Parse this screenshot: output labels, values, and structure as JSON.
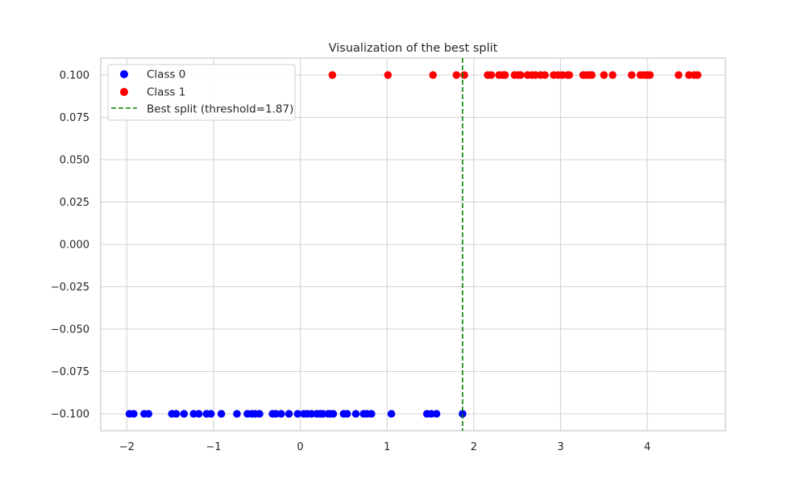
{
  "chart_data": {
    "type": "scatter",
    "title": "Visualization of the best split",
    "xlabel": "",
    "ylabel": "",
    "xlim": [
      -2.3,
      4.9
    ],
    "ylim": [
      -0.11,
      0.11
    ],
    "x_ticks": [
      -2,
      -1,
      0,
      1,
      2,
      3,
      4
    ],
    "x_tick_labels": [
      "−2",
      "−1",
      "0",
      "1",
      "2",
      "3",
      "4"
    ],
    "y_ticks": [
      0.1,
      0.075,
      0.05,
      0.025,
      0.0,
      -0.025,
      -0.05,
      -0.075,
      -0.1
    ],
    "y_tick_labels": [
      "0.100",
      "0.075",
      "0.050",
      "0.025",
      "0.000",
      "−0.025",
      "−0.050",
      "−0.075",
      "−0.100"
    ],
    "grid": true,
    "legend_position": "top-left",
    "series": [
      {
        "name": "Class 0",
        "color": "#0000ff",
        "y_value": -0.1,
        "x": [
          -1.97,
          -1.92,
          -1.8,
          -1.75,
          -1.48,
          -1.43,
          -1.34,
          -1.23,
          -1.17,
          -1.08,
          -1.03,
          -0.91,
          -0.73,
          -0.61,
          -0.56,
          -0.52,
          -0.47,
          -0.32,
          -0.28,
          -0.22,
          -0.13,
          -0.03,
          0.04,
          0.08,
          0.13,
          0.19,
          0.23,
          0.26,
          0.32,
          0.35,
          0.38,
          0.5,
          0.54,
          0.64,
          0.73,
          0.77,
          0.82,
          1.05,
          1.46,
          1.51,
          1.57,
          1.87
        ]
      },
      {
        "name": "Class 1",
        "color": "#ff0000",
        "y_value": 0.1,
        "x": [
          0.37,
          1.01,
          1.53,
          1.8,
          1.89,
          2.16,
          2.2,
          2.29,
          2.33,
          2.36,
          2.47,
          2.51,
          2.54,
          2.62,
          2.67,
          2.71,
          2.77,
          2.82,
          2.92,
          2.97,
          3.02,
          3.08,
          3.1,
          3.26,
          3.3,
          3.33,
          3.36,
          3.5,
          3.6,
          3.82,
          3.92,
          3.96,
          4.0,
          4.03,
          4.36,
          4.48,
          4.54,
          4.58
        ]
      }
    ],
    "split": {
      "label": "Best split (threshold=1.87)",
      "threshold": 1.87,
      "color": "#008000",
      "style": "dashed"
    },
    "colors": {
      "grid": "#d3d3d3",
      "axes_edge": "#cccccc",
      "text": "#262626"
    }
  }
}
